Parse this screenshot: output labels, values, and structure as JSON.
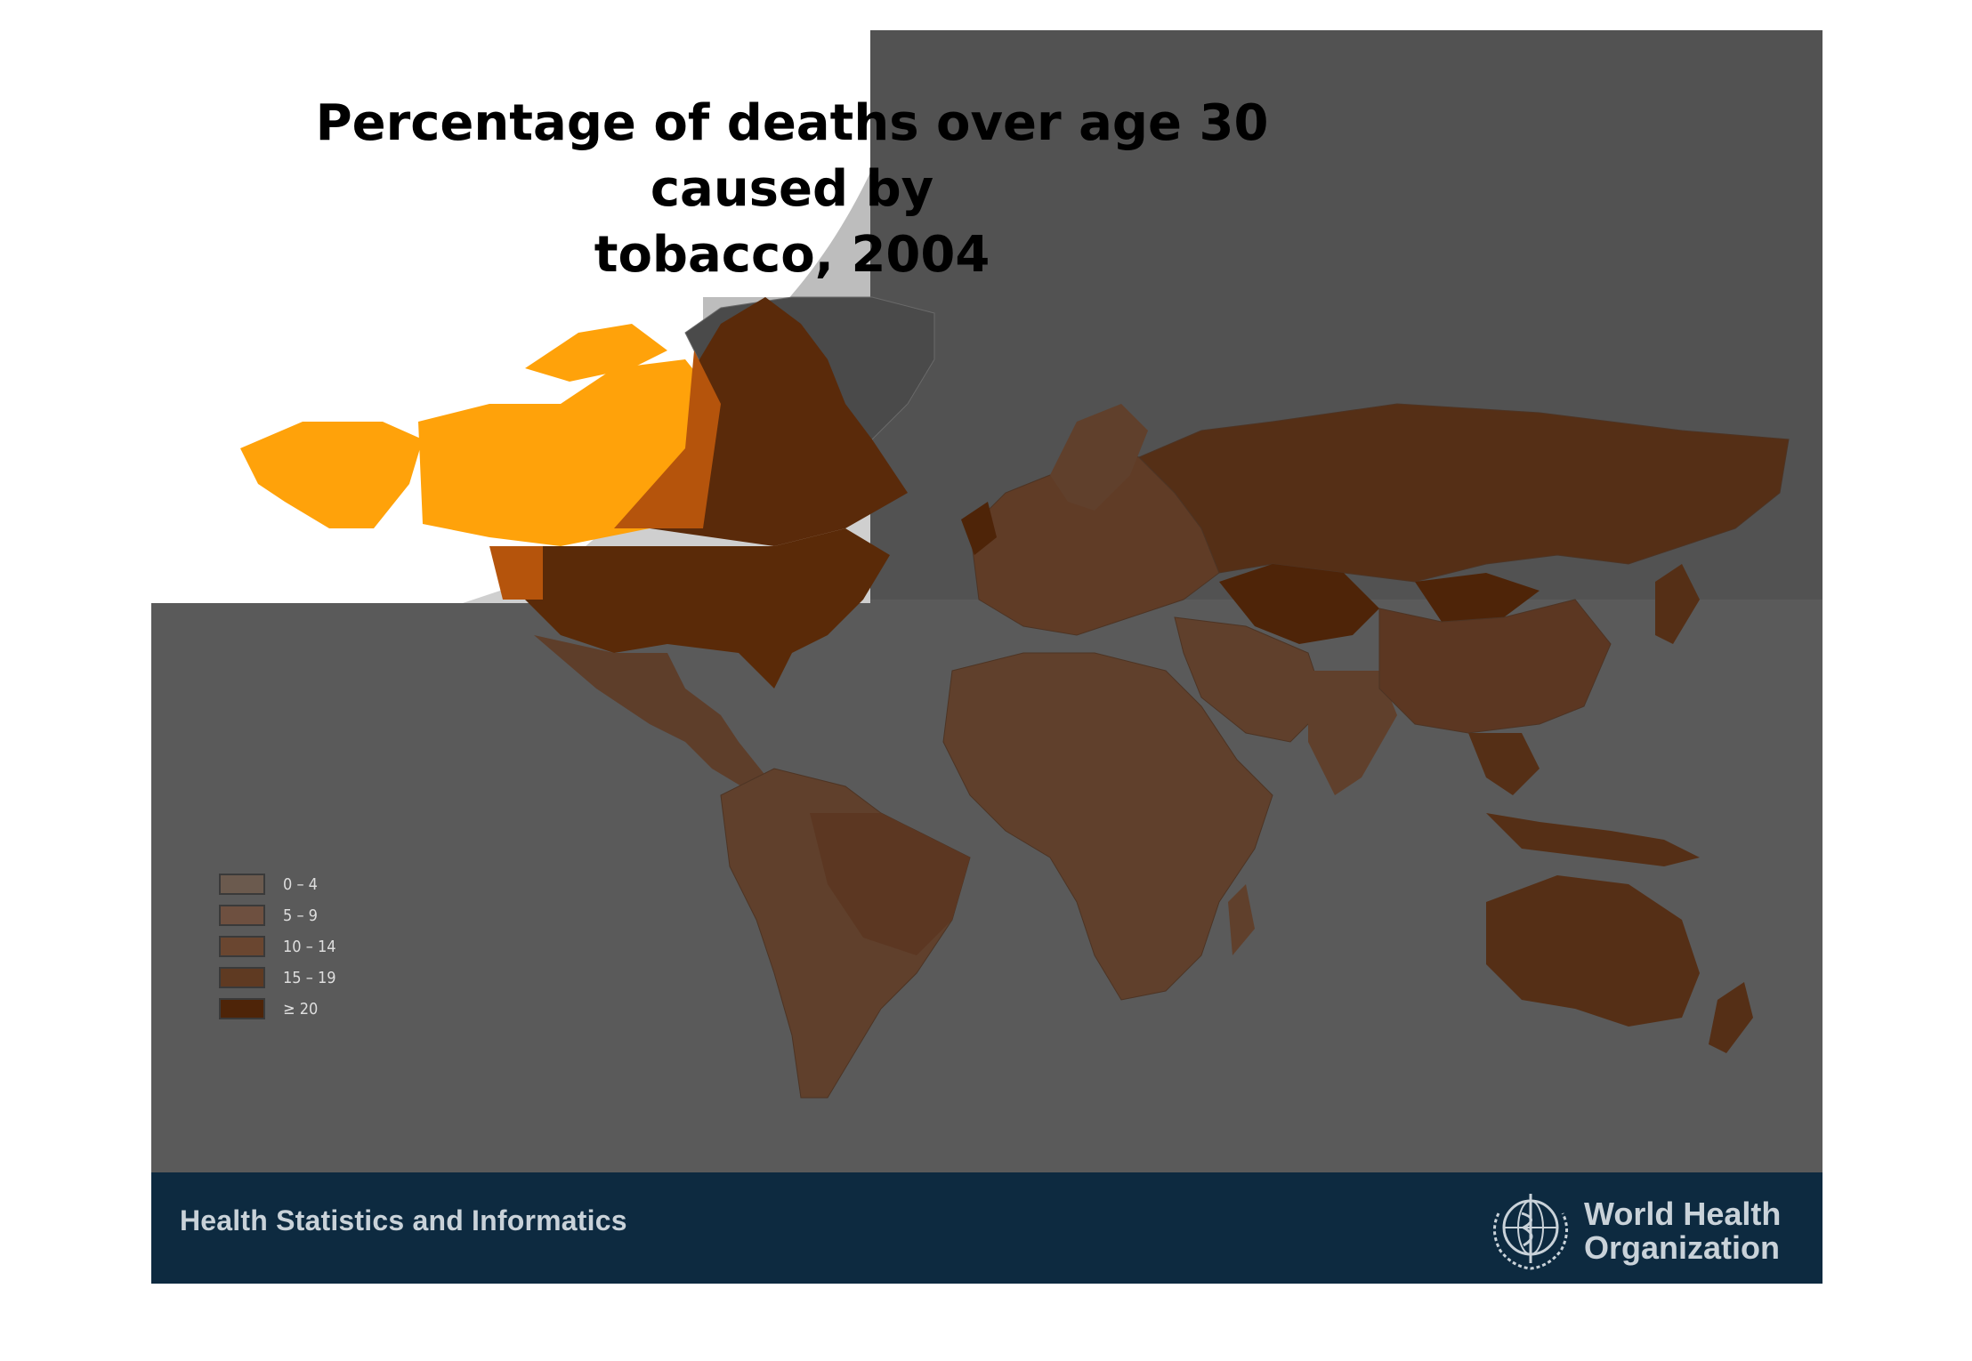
{
  "title_line1": "Percentage of deaths over age 30 caused by",
  "title_line2": "tobacco, 2004",
  "legend": [
    {
      "label": "0 – 4",
      "color": "#6b5a4e"
    },
    {
      "label": "5 – 9",
      "color": "#6e5040"
    },
    {
      "label": "10 – 14",
      "color": "#6a4630"
    },
    {
      "label": "15 – 19",
      "color": "#5f3a22"
    },
    {
      "label": "≥ 20",
      "color": "#4e2408"
    }
  ],
  "footer": {
    "department": "Health Statistics and Informatics",
    "org_line1": "World Health",
    "org_line2": "Organization"
  },
  "colors": {
    "background": "#5a5a5a",
    "footer": "#0d2a40",
    "ocean": "#575757",
    "highlight_orange": "#ffa20a"
  }
}
